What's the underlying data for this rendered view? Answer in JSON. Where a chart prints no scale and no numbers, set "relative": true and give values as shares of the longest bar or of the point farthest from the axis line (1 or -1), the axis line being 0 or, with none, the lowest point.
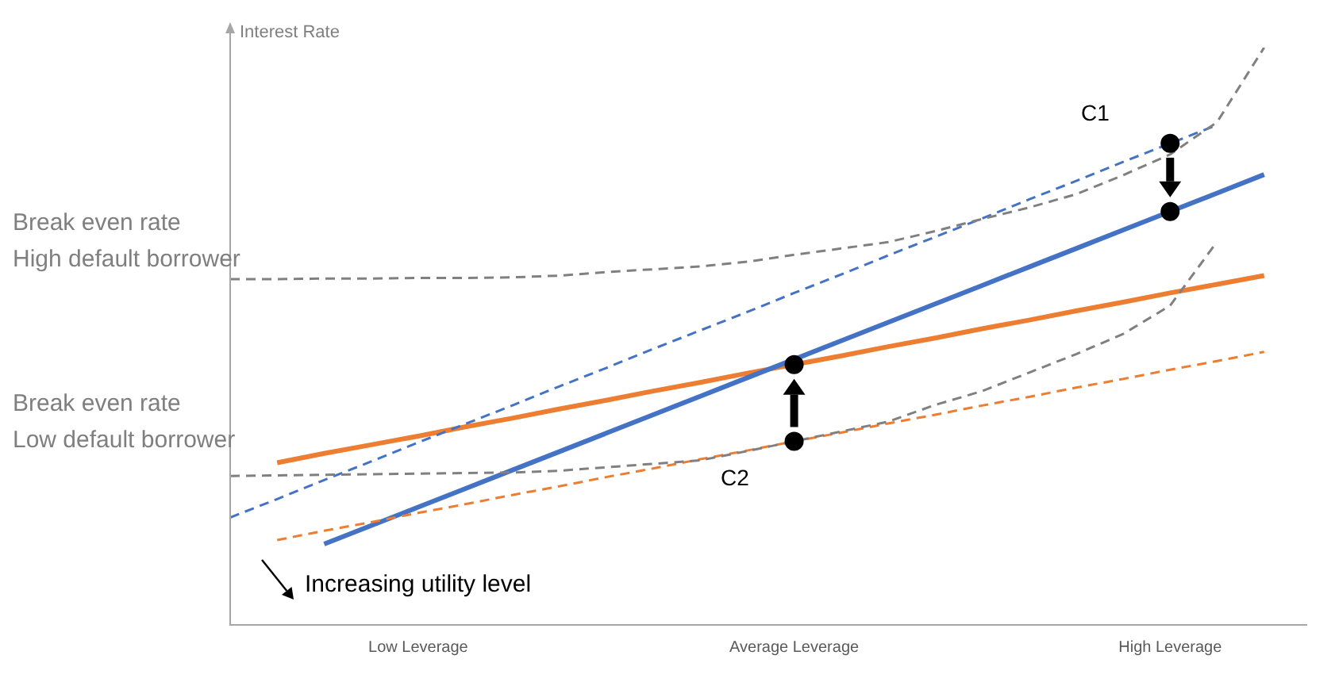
{
  "chart_data": {
    "type": "line",
    "relative": true,
    "ylabel": "Interest Rate",
    "tick_labels": "x",
    "grid": false,
    "legend": false,
    "marker": "none",
    "categories": [
      null,
      null,
      null,
      null,
      "Low Leverage",
      null,
      null,
      null,
      null,
      null,
      null,
      null,
      "Average Leverage",
      null,
      null,
      null,
      null,
      null,
      null,
      null,
      "High Leverage",
      null,
      null
    ],
    "series": [
      {
        "color": "#808080",
        "line_style": "dashed",
        "values": [
          0.599,
          0.599,
          0.6,
          0.6,
          0.601,
          0.601,
          0.602,
          0.605,
          0.611,
          0.616,
          0.621,
          0.629,
          0.641,
          0.652,
          0.663,
          0.682,
          0.703,
          0.723,
          0.746,
          0.779,
          0.815,
          0.871,
          1.0
        ]
      },
      {
        "color": "#808080",
        "line_style": "dashed",
        "values": [
          0.258,
          0.259,
          0.26,
          0.261,
          0.262,
          0.263,
          0.264,
          0.267,
          0.273,
          0.279,
          0.285,
          0.301,
          0.318,
          0.335,
          0.352,
          0.381,
          0.405,
          0.437,
          0.469,
          0.504,
          0.553,
          0.664,
          null
        ]
      },
      {
        "color": "#4472c4",
        "line_style": "dashed",
        "values": [
          0.186,
          0.218,
          0.251,
          0.283,
          0.316,
          0.348,
          0.38,
          0.413,
          0.445,
          0.478,
          0.51,
          0.542,
          0.575,
          0.607,
          0.64,
          0.672,
          0.704,
          0.737,
          0.769,
          0.802,
          0.834,
          0.866,
          null
        ]
      },
      {
        "color": "#ed7d31",
        "line_style": "dashed",
        "values": [
          null,
          0.147,
          0.163,
          0.178,
          0.194,
          0.209,
          0.225,
          0.24,
          0.256,
          0.271,
          0.287,
          0.302,
          0.318,
          0.333,
          0.349,
          0.364,
          0.38,
          0.395,
          0.411,
          0.426,
          0.442,
          0.457,
          0.473
        ]
      },
      {
        "color": "#4472c4",
        "line_style": "solid",
        "values": [
          null,
          null,
          0.14,
          0.172,
          0.204,
          0.236,
          0.268,
          0.3,
          0.332,
          0.364,
          0.396,
          0.428,
          0.46,
          0.492,
          0.524,
          0.556,
          0.588,
          0.62,
          0.652,
          0.684,
          0.716,
          0.748,
          0.78
        ]
      },
      {
        "color": "#ed7d31",
        "line_style": "solid",
        "values": [
          null,
          0.281,
          0.297,
          0.312,
          0.327,
          0.343,
          0.358,
          0.374,
          0.389,
          0.405,
          0.42,
          0.436,
          0.451,
          0.466,
          0.482,
          0.497,
          0.513,
          0.528,
          0.544,
          0.559,
          0.575,
          0.59,
          0.605
        ]
      },
      {
        "type": "scatter",
        "color": "#000000",
        "marker": "circle",
        "values": [
          null,
          null,
          null,
          null,
          null,
          null,
          null,
          null,
          null,
          null,
          null,
          null,
          0.318,
          null,
          null,
          null,
          null,
          null,
          null,
          null,
          0.834,
          null,
          null
        ]
      },
      {
        "type": "scatter",
        "color": "#000000",
        "marker": "circle",
        "values": [
          null,
          null,
          null,
          null,
          null,
          null,
          null,
          null,
          null,
          null,
          null,
          null,
          0.451,
          null,
          null,
          null,
          null,
          null,
          null,
          null,
          0.716,
          null,
          null
        ]
      }
    ],
    "annotations": [
      "Break even rate\nHigh default borrower",
      "Break even rate\nLow default borrower",
      "C1",
      "C2",
      "Increasing utility level"
    ]
  }
}
